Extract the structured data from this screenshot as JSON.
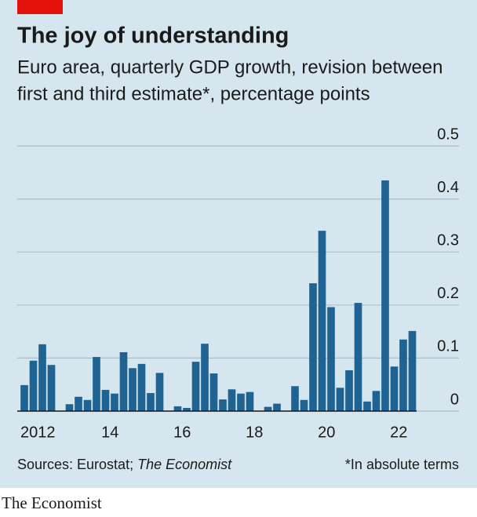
{
  "chart_data": {
    "type": "bar",
    "title": "The joy of understanding",
    "subtitle": [
      "Euro area, quarterly GDP growth, revision between",
      "first and third estimate*, percentage points"
    ],
    "x": [
      2012.125,
      2012.375,
      2012.625,
      2012.875,
      2013.125,
      2013.375,
      2013.625,
      2013.875,
      2014.125,
      2014.375,
      2014.625,
      2014.875,
      2015.125,
      2015.375,
      2015.625,
      2015.875,
      2016.125,
      2016.375,
      2016.625,
      2016.875,
      2017.125,
      2017.375,
      2017.625,
      2017.875,
      2018.125,
      2018.375,
      2018.625,
      2018.875,
      2019.125,
      2019.375,
      2019.625,
      2019.875,
      2020.125,
      2020.375,
      2020.625,
      2020.875,
      2021.125,
      2021.375,
      2021.625,
      2021.875,
      2022.125,
      2022.375,
      2022.625,
      2022.875
    ],
    "values": [
      0.049,
      0.095,
      0.126,
      0.087,
      0,
      0.013,
      0.027,
      0.021,
      0.102,
      0.04,
      0.033,
      0.111,
      0.081,
      0.089,
      0.034,
      0.072,
      0,
      0.009,
      0.006,
      0.093,
      0.127,
      0.071,
      0.022,
      0.041,
      0.033,
      0.036,
      0,
      0.008,
      0.014,
      0,
      0.047,
      0.021,
      0.241,
      0.34,
      0.196,
      0.044,
      0.077,
      0.204,
      0.018,
      0.038,
      0.435,
      0.084,
      0.135,
      0.151
    ],
    "color": "#1f6392",
    "xlim": [
      2012,
      2023
    ],
    "xticks": [
      {
        "value": 2012.5,
        "label": "2012"
      },
      {
        "value": 2014.5,
        "label": "14"
      },
      {
        "value": 2016.5,
        "label": "16"
      },
      {
        "value": 2018.5,
        "label": "18"
      },
      {
        "value": 2020.5,
        "label": "20"
      },
      {
        "value": 2022.5,
        "label": "22"
      }
    ],
    "ylim": [
      0,
      0.5
    ],
    "yticks": [
      0,
      0.1,
      0.2,
      0.3,
      0.4,
      0.5
    ],
    "grid": true,
    "source": "Sources: Eurostat;",
    "source_italic": "The Economist",
    "note": "*In absolute terms",
    "brand": "The Economist"
  }
}
